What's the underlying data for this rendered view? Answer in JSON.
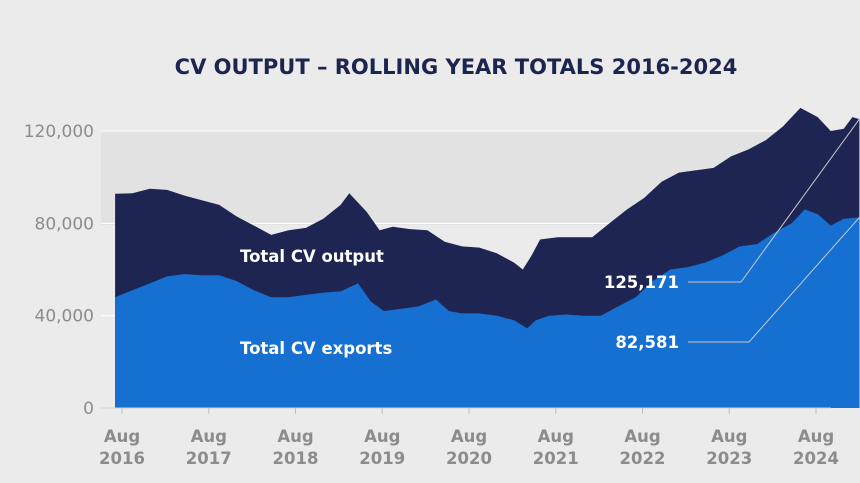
{
  "chart_data": {
    "type": "area",
    "title": "CV OUTPUT – ROLLING YEAR TOTALS 2016-2024",
    "xlabel": "",
    "ylabel": "",
    "ylim": [
      0,
      120000
    ],
    "yticks": [
      "120,000",
      "80,000",
      "40,000",
      "0"
    ],
    "ytick_values": [
      120000,
      80000,
      40000,
      0
    ],
    "xticks": [
      {
        "month": "Aug",
        "year": "2016",
        "t": 2016.58
      },
      {
        "month": "Aug",
        "year": "2017",
        "t": 2017.58
      },
      {
        "month": "Aug",
        "year": "2018",
        "t": 2018.58
      },
      {
        "month": "Aug",
        "year": "2019",
        "t": 2019.58
      },
      {
        "month": "Aug",
        "year": "2020",
        "t": 2020.58
      },
      {
        "month": "Aug",
        "year": "2021",
        "t": 2021.58
      },
      {
        "month": "Aug",
        "year": "2022",
        "t": 2022.58
      },
      {
        "month": "Aug",
        "year": "2023",
        "t": 2023.58
      },
      {
        "month": "Aug",
        "year": "2024",
        "t": 2024.58
      }
    ],
    "series": [
      {
        "name": "Total CV output",
        "color": "#1e2553",
        "points": [
          [
            2016.5,
            92800
          ],
          [
            2016.7,
            93000
          ],
          [
            2016.9,
            95000
          ],
          [
            2017.1,
            94500
          ],
          [
            2017.3,
            92000
          ],
          [
            2017.5,
            90000
          ],
          [
            2017.7,
            88000
          ],
          [
            2017.9,
            83000
          ],
          [
            2018.1,
            79000
          ],
          [
            2018.3,
            75000
          ],
          [
            2018.5,
            77000
          ],
          [
            2018.7,
            78000
          ],
          [
            2018.9,
            82000
          ],
          [
            2019.1,
            88000
          ],
          [
            2019.2,
            93000
          ],
          [
            2019.4,
            85000
          ],
          [
            2019.55,
            77000
          ],
          [
            2019.7,
            78500
          ],
          [
            2019.9,
            77500
          ],
          [
            2020.1,
            77000
          ],
          [
            2020.3,
            72000
          ],
          [
            2020.5,
            70000
          ],
          [
            2020.7,
            69500
          ],
          [
            2020.9,
            67000
          ],
          [
            2021.1,
            63000
          ],
          [
            2021.2,
            60000
          ],
          [
            2021.3,
            66000
          ],
          [
            2021.4,
            73000
          ],
          [
            2021.6,
            74000
          ],
          [
            2021.8,
            74000
          ],
          [
            2022.0,
            74000
          ],
          [
            2022.2,
            80000
          ],
          [
            2022.4,
            86000
          ],
          [
            2022.6,
            91000
          ],
          [
            2022.8,
            98000
          ],
          [
            2023.0,
            102000
          ],
          [
            2023.2,
            103000
          ],
          [
            2023.4,
            104000
          ],
          [
            2023.6,
            109000
          ],
          [
            2023.8,
            112000
          ],
          [
            2024.0,
            116000
          ],
          [
            2024.2,
            122000
          ],
          [
            2024.4,
            130000
          ],
          [
            2024.6,
            126000
          ],
          [
            2024.75,
            120000
          ],
          [
            2024.9,
            121000
          ],
          [
            2025.0,
            126000
          ],
          [
            2025.08,
            125171
          ]
        ]
      },
      {
        "name": "Total CV exports",
        "color": "#1570d1",
        "points": [
          [
            2016.5,
            48000
          ],
          [
            2016.7,
            51000
          ],
          [
            2016.9,
            54000
          ],
          [
            2017.1,
            57000
          ],
          [
            2017.3,
            58000
          ],
          [
            2017.5,
            57500
          ],
          [
            2017.7,
            57500
          ],
          [
            2017.9,
            55000
          ],
          [
            2018.1,
            51000
          ],
          [
            2018.3,
            48000
          ],
          [
            2018.5,
            48000
          ],
          [
            2018.7,
            49000
          ],
          [
            2018.9,
            50000
          ],
          [
            2019.1,
            50500
          ],
          [
            2019.3,
            54000
          ],
          [
            2019.45,
            46000
          ],
          [
            2019.6,
            42000
          ],
          [
            2019.8,
            43000
          ],
          [
            2020.0,
            44000
          ],
          [
            2020.2,
            47000
          ],
          [
            2020.35,
            42000
          ],
          [
            2020.5,
            41000
          ],
          [
            2020.7,
            41000
          ],
          [
            2020.9,
            40000
          ],
          [
            2021.1,
            38000
          ],
          [
            2021.25,
            34500
          ],
          [
            2021.35,
            38000
          ],
          [
            2021.5,
            40000
          ],
          [
            2021.7,
            40500
          ],
          [
            2021.9,
            40000
          ],
          [
            2022.1,
            40000
          ],
          [
            2022.3,
            44000
          ],
          [
            2022.5,
            48000
          ],
          [
            2022.7,
            55000
          ],
          [
            2022.9,
            60000
          ],
          [
            2023.1,
            61000
          ],
          [
            2023.3,
            63000
          ],
          [
            2023.5,
            66000
          ],
          [
            2023.7,
            70000
          ],
          [
            2023.9,
            71000
          ],
          [
            2024.1,
            76000
          ],
          [
            2024.3,
            80000
          ],
          [
            2024.45,
            86000
          ],
          [
            2024.6,
            84000
          ],
          [
            2024.75,
            79000
          ],
          [
            2024.9,
            82000
          ],
          [
            2025.08,
            82581
          ]
        ]
      }
    ],
    "series_labels": [
      {
        "text": "Total CV output",
        "series": "Total CV output"
      },
      {
        "text": "Total CV exports",
        "series": "Total CV exports"
      }
    ],
    "annotations": [
      {
        "text": "125,171",
        "value": 125171,
        "series": "Total CV output"
      },
      {
        "text": "82,581",
        "value": 82581,
        "series": "Total CV exports"
      }
    ]
  }
}
